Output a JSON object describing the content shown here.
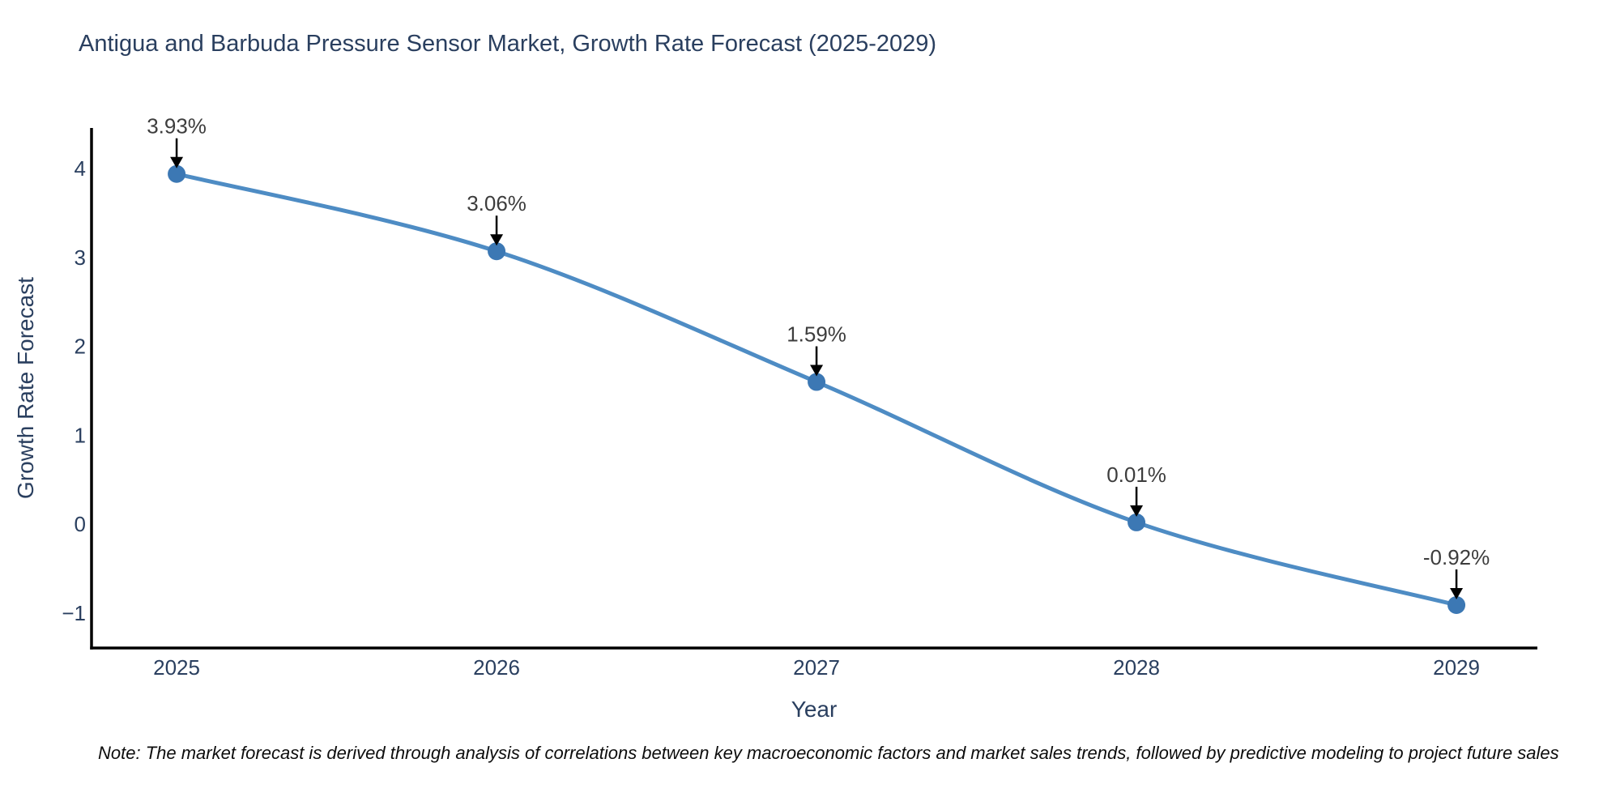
{
  "title": "Antigua and Barbuda Pressure Sensor Market, Growth Rate Forecast (2025-2029)",
  "note": "Note: The market forecast is derived through analysis of correlations between key macroeconomic factors and market sales trends, followed by predictive modeling to project future sales",
  "chart_data": {
    "type": "line",
    "title": "Antigua and Barbuda Pressure Sensor Market, Growth Rate Forecast (2025-2029)",
    "xlabel": "Year",
    "ylabel": "Growth Rate Forecast",
    "categories": [
      "2025",
      "2026",
      "2027",
      "2028",
      "2029"
    ],
    "x": [
      2025,
      2026,
      2027,
      2028,
      2029
    ],
    "values": [
      3.93,
      3.06,
      1.59,
      0.01,
      -0.92
    ],
    "point_labels": [
      "3.93%",
      "3.06%",
      "1.59%",
      "0.01%",
      "-0.92%"
    ],
    "y_ticks": [
      4,
      3,
      2,
      1,
      0,
      -1
    ],
    "y_tick_labels": [
      "4",
      "3",
      "2",
      "1",
      "0",
      "−1"
    ],
    "xlim": [
      2024.734,
      2029.253
    ],
    "ylim": [
      -1.403,
      4.447
    ],
    "grid": false,
    "line_shape": "spline",
    "legend": "none",
    "colors": {
      "line": "#4e8cc4",
      "marker": "#3c78b4",
      "axis": "#000000",
      "tick_text": "#2a3f5f",
      "annotation_text": "#3d3d3d",
      "arrow": "#000000",
      "background": "#ffffff"
    }
  }
}
